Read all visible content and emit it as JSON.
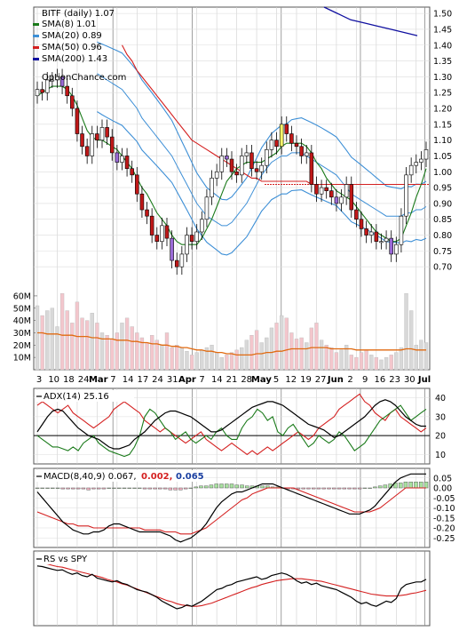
{
  "chart_data": [
    {
      "type": "candlestick",
      "panel": "price",
      "title": "BITF (daily) 1.07",
      "watermark": "OptionChance.com",
      "legend": [
        {
          "label": "SMA(8) 1.01",
          "color": "#1a7a1a"
        },
        {
          "label": "SMA(20) 0.89",
          "color": "#3d8fd6"
        },
        {
          "label": "SMA(50) 0.96",
          "color": "#d42020"
        },
        {
          "label": "SMA(200) 1.43",
          "color": "#1010a0"
        }
      ],
      "legend_placement": "top-left",
      "y_ticks": [
        "1.50",
        "1.45",
        "1.40",
        "1.35",
        "1.30",
        "1.25",
        "1.20",
        "1.15",
        "1.10",
        "1.05",
        "1.00",
        "0.95",
        "0.90",
        "0.85",
        "0.80",
        "0.75",
        "0.70"
      ],
      "ylim": [
        0.65,
        1.52
      ],
      "grid": true,
      "x_tick_labels": [
        "3",
        "10",
        "18",
        "24",
        "Mar",
        "7",
        "14",
        "17",
        "24",
        "31",
        "Apr",
        "7",
        "14",
        "21",
        "28",
        "May",
        "5",
        "12",
        "19",
        "27",
        "Jun",
        "2",
        "9",
        "16",
        "23",
        "30",
        "Jul"
      ],
      "close": [
        1.26,
        1.25,
        1.29,
        1.29,
        1.3,
        1.27,
        1.24,
        1.2,
        1.12,
        1.08,
        1.05,
        1.12,
        1.1,
        1.14,
        1.11,
        1.06,
        1.03,
        1.05,
        1.01,
        0.99,
        0.93,
        0.88,
        0.86,
        0.8,
        0.78,
        0.83,
        0.79,
        0.72,
        0.7,
        0.74,
        0.8,
        0.78,
        0.81,
        0.85,
        0.92,
        0.98,
        1.0,
        1.05,
        1.04,
        1.0,
        0.99,
        1.05,
        1.06,
        1.01,
        1.0,
        1.02,
        1.07,
        1.1,
        1.08,
        1.15,
        1.12,
        1.09,
        1.08,
        1.05,
        1.06,
        0.96,
        0.93,
        0.95,
        0.94,
        0.92,
        0.9,
        0.92,
        0.96,
        0.88,
        0.85,
        0.82,
        0.8,
        0.81,
        0.78,
        0.78,
        0.79,
        0.74,
        0.77,
        0.86,
        0.99,
        1.02,
        1.03,
        1.04,
        1.07
      ],
      "sma8": [
        1.24,
        1.25,
        1.26,
        1.27,
        1.27,
        1.27,
        1.26,
        1.24,
        1.21,
        1.17,
        1.13,
        1.11,
        1.1,
        1.1,
        1.09,
        1.08,
        1.07,
        1.05,
        1.03,
        1.01,
        0.98,
        0.95,
        0.93,
        0.9,
        0.87,
        0.85,
        0.83,
        0.8,
        0.78,
        0.77,
        0.77,
        0.77,
        0.77,
        0.79,
        0.82,
        0.85,
        0.89,
        0.93,
        0.97,
        0.99,
        1.01,
        1.02,
        1.03,
        1.03,
        1.03,
        1.03,
        1.04,
        1.05,
        1.06,
        1.08,
        1.09,
        1.09,
        1.09,
        1.09,
        1.08,
        1.06,
        1.03,
        1.01,
        0.98,
        0.96,
        0.94,
        0.93,
        0.92,
        0.91,
        0.89,
        0.87,
        0.85,
        0.83,
        0.81,
        0.8,
        0.79,
        0.78,
        0.78,
        0.79,
        0.83,
        0.87,
        0.92,
        0.96,
        1.01
      ],
      "sma20_mid": [
        1.31,
        1.3,
        1.29,
        1.28,
        1.27,
        1.26,
        1.24,
        1.22,
        1.2,
        1.17,
        1.15,
        1.13,
        1.11,
        1.09,
        1.07,
        1.05,
        1.02,
        0.99,
        0.96,
        0.93,
        0.9,
        0.88,
        0.86,
        0.85,
        0.84,
        0.83,
        0.83,
        0.84,
        0.86,
        0.88,
        0.9,
        0.93,
        0.96,
        0.99,
        1.01,
        1.03,
        1.04,
        1.05,
        1.05,
        1.06,
        1.06,
        1.06,
        1.05,
        1.04,
        1.03,
        1.02,
        1.01,
        1.0,
        0.99,
        0.97,
        0.95,
        0.93,
        0.92,
        0.91,
        0.9,
        0.89,
        0.88,
        0.87,
        0.86,
        0.86,
        0.86,
        0.86,
        0.87,
        0.87,
        0.88,
        0.88,
        0.89
      ],
      "sma50": [
        null,
        null,
        null,
        null,
        null,
        null,
        null,
        null,
        null,
        null,
        null,
        null,
        null,
        null,
        null,
        null,
        null,
        1.4,
        1.37,
        1.35,
        1.32,
        1.3,
        1.28,
        1.26,
        1.24,
        1.22,
        1.2,
        1.18,
        1.16,
        1.14,
        1.12,
        1.1,
        1.09,
        1.08,
        1.07,
        1.06,
        1.05,
        1.04,
        1.03,
        1.02,
        1.01,
        1.0,
        0.99,
        0.98,
        0.98,
        0.97,
        0.97,
        0.97,
        0.97,
        0.97,
        0.97,
        0.97,
        0.97,
        0.97,
        0.97,
        0.96,
        0.96,
        0.96,
        0.96,
        0.96,
        0.96,
        0.96,
        0.96,
        0.96,
        0.96,
        0.96,
        0.96,
        0.96,
        0.96,
        0.96,
        0.96,
        0.96,
        0.96,
        0.96,
        0.96,
        0.96,
        0.96,
        0.96,
        0.96
      ],
      "sma200": [
        1.52,
        1.5,
        1.48,
        1.47,
        1.46,
        1.45,
        1.44,
        1.43
      ],
      "volume_ticks": [
        "60M",
        "50M",
        "40M",
        "30M",
        "20M",
        "10M"
      ],
      "volume_max": 65,
      "volume_millions": [
        52,
        44,
        48,
        50,
        35,
        62,
        48,
        38,
        55,
        42,
        40,
        46,
        38,
        30,
        28,
        25,
        30,
        38,
        42,
        35,
        30,
        26,
        22,
        28,
        24,
        20,
        30,
        18,
        20,
        18,
        15,
        12,
        14,
        16,
        18,
        20,
        14,
        10,
        12,
        14,
        16,
        18,
        24,
        28,
        32,
        22,
        26,
        34,
        38,
        44,
        42,
        30,
        25,
        26,
        22,
        34,
        38,
        24,
        20,
        18,
        14,
        16,
        20,
        12,
        10,
        14,
        16,
        12,
        10,
        8,
        10,
        12,
        14,
        18,
        62,
        48,
        20,
        24,
        22
      ],
      "volume_ma": [
        30,
        30,
        29,
        29,
        29,
        28,
        28,
        28,
        27,
        27,
        27,
        26,
        26,
        25,
        25,
        25,
        24,
        24,
        24,
        23,
        23,
        22,
        22,
        21,
        21,
        20,
        20,
        19,
        19,
        18,
        18,
        17,
        16,
        16,
        15,
        15,
        14,
        14,
        13,
        13,
        12,
        12,
        12,
        12,
        13,
        13,
        14,
        14,
        15,
        15,
        16,
        17,
        17,
        17,
        17,
        18,
        18,
        18,
        18,
        17,
        17,
        17,
        17,
        17,
        16,
        16,
        16,
        16,
        16,
        16,
        16,
        16,
        16,
        16,
        17,
        17,
        16,
        16,
        16
      ]
    },
    {
      "type": "line",
      "panel": "adx",
      "label": "ADX(14) 25.16",
      "y_ticks": [
        "40",
        "30",
        "20",
        "10"
      ],
      "ylim": [
        5,
        45
      ],
      "reference_line": 20,
      "adx": [
        22,
        26,
        30,
        33,
        34,
        33,
        30,
        27,
        24,
        22,
        20,
        19,
        18,
        16,
        14,
        13,
        13,
        14,
        15,
        18,
        20,
        22,
        25,
        28,
        30,
        32,
        33,
        33,
        32,
        31,
        30,
        28,
        26,
        24,
        22,
        22,
        23,
        25,
        27,
        29,
        31,
        33,
        35,
        36,
        37,
        38,
        38,
        37,
        36,
        34,
        32,
        30,
        28,
        26,
        25,
        24,
        23,
        21,
        19,
        20,
        22,
        24,
        26,
        28,
        30,
        33,
        36,
        38,
        39,
        38,
        36,
        33,
        30,
        28,
        26,
        25,
        25
      ],
      "plus_di": [
        20,
        18,
        16,
        14,
        14,
        13,
        12,
        14,
        12,
        16,
        18,
        20,
        16,
        14,
        12,
        11,
        10,
        9,
        10,
        14,
        20,
        30,
        34,
        32,
        28,
        24,
        22,
        18,
        20,
        22,
        18,
        16,
        18,
        20,
        18,
        22,
        24,
        20,
        18,
        18,
        24,
        28,
        30,
        34,
        32,
        28,
        30,
        22,
        20,
        24,
        26,
        22,
        18,
        14,
        16,
        20,
        18,
        16,
        18,
        22,
        20,
        16,
        12,
        14,
        16,
        20,
        24,
        28,
        30,
        32,
        34,
        36,
        32,
        28,
        30,
        32,
        34
      ],
      "minus_di": [
        36,
        38,
        36,
        34,
        32,
        34,
        36,
        32,
        30,
        28,
        26,
        24,
        26,
        28,
        30,
        34,
        36,
        38,
        36,
        34,
        32,
        28,
        26,
        24,
        22,
        24,
        22,
        20,
        18,
        16,
        18,
        20,
        22,
        18,
        16,
        14,
        12,
        14,
        16,
        14,
        12,
        10,
        12,
        10,
        12,
        14,
        12,
        14,
        16,
        18,
        20,
        22,
        20,
        18,
        20,
        24,
        26,
        28,
        30,
        34,
        36,
        38,
        40,
        42,
        38,
        36,
        32,
        30,
        28,
        32,
        34,
        30,
        28,
        26,
        24,
        22,
        24
      ]
    },
    {
      "type": "bar",
      "panel": "macd",
      "label": "MACD(8,40,9) 0.067,",
      "signal_label": "0.002,",
      "hist_label": "0.065",
      "y_ticks": [
        "0.05",
        "0.00",
        "-0.05",
        "-0.10",
        "-0.15",
        "-0.20",
        "-0.25"
      ],
      "ylim": [
        -0.28,
        0.08
      ],
      "macd": [
        -0.02,
        -0.05,
        -0.08,
        -0.11,
        -0.14,
        -0.17,
        -0.19,
        -0.21,
        -0.22,
        -0.23,
        -0.23,
        -0.22,
        -0.22,
        -0.21,
        -0.19,
        -0.18,
        -0.18,
        -0.19,
        -0.2,
        -0.21,
        -0.22,
        -0.22,
        -0.22,
        -0.22,
        -0.22,
        -0.23,
        -0.24,
        -0.26,
        -0.27,
        -0.26,
        -0.25,
        -0.23,
        -0.21,
        -0.18,
        -0.14,
        -0.1,
        -0.07,
        -0.05,
        -0.03,
        -0.02,
        -0.02,
        -0.01,
        0.0,
        0.01,
        0.02,
        0.02,
        0.02,
        0.01,
        0.0,
        -0.01,
        -0.02,
        -0.03,
        -0.04,
        -0.05,
        -0.06,
        -0.07,
        -0.08,
        -0.09,
        -0.1,
        -0.11,
        -0.12,
        -0.13,
        -0.13,
        -0.13,
        -0.12,
        -0.11,
        -0.09,
        -0.06,
        -0.03,
        0.0,
        0.03,
        0.05,
        0.06,
        0.07,
        0.07,
        0.07,
        0.07
      ],
      "signal": [
        -0.12,
        -0.13,
        -0.14,
        -0.15,
        -0.16,
        -0.17,
        -0.18,
        -0.18,
        -0.19,
        -0.19,
        -0.19,
        -0.2,
        -0.2,
        -0.2,
        -0.2,
        -0.2,
        -0.2,
        -0.2,
        -0.2,
        -0.2,
        -0.2,
        -0.21,
        -0.21,
        -0.21,
        -0.21,
        -0.22,
        -0.22,
        -0.22,
        -0.23,
        -0.23,
        -0.23,
        -0.22,
        -0.21,
        -0.2,
        -0.18,
        -0.16,
        -0.14,
        -0.12,
        -0.1,
        -0.08,
        -0.06,
        -0.05,
        -0.03,
        -0.02,
        -0.01,
        0.0,
        0.0,
        0.0,
        0.0,
        0.0,
        0.0,
        -0.01,
        -0.02,
        -0.03,
        -0.04,
        -0.05,
        -0.06,
        -0.07,
        -0.08,
        -0.09,
        -0.1,
        -0.11,
        -0.12,
        -0.12,
        -0.12,
        -0.12,
        -0.11,
        -0.1,
        -0.08,
        -0.06,
        -0.04,
        -0.02,
        0.0,
        0.0,
        0.0,
        0.0,
        0.0
      ],
      "hist": [
        0.0,
        0.0,
        0.0,
        0.0,
        0.0,
        -0.01,
        -0.01,
        -0.01,
        -0.01,
        -0.01,
        -0.02,
        -0.01,
        -0.01,
        -0.01,
        0.0,
        0.0,
        0.0,
        0.0,
        0.0,
        0.0,
        0.0,
        -0.01,
        -0.01,
        -0.01,
        -0.01,
        -0.01,
        -0.02,
        -0.02,
        -0.02,
        -0.01,
        0.0,
        0.01,
        0.02,
        0.02,
        0.03,
        0.04,
        0.04,
        0.04,
        0.04,
        0.03,
        0.03,
        0.02,
        0.02,
        0.02,
        0.02,
        0.02,
        0.01,
        0.01,
        0.0,
        -0.01,
        -0.01,
        -0.01,
        -0.01,
        -0.01,
        -0.01,
        -0.01,
        -0.01,
        -0.01,
        -0.01,
        -0.01,
        -0.01,
        -0.01,
        -0.01,
        -0.01,
        0.0,
        0.0,
        0.01,
        0.02,
        0.03,
        0.04,
        0.05,
        0.05,
        0.06,
        0.06,
        0.06,
        0.06,
        0.06
      ]
    },
    {
      "type": "line",
      "panel": "rs",
      "label": "RS vs SPY",
      "ylim": [
        0,
        100
      ],
      "rs": [
        85,
        84,
        82,
        80,
        78,
        79,
        75,
        72,
        74,
        70,
        68,
        72,
        66,
        64,
        62,
        60,
        62,
        58,
        56,
        52,
        48,
        46,
        44,
        40,
        36,
        30,
        26,
        22,
        18,
        20,
        24,
        22,
        26,
        30,
        36,
        42,
        48,
        50,
        54,
        56,
        60,
        62,
        64,
        66,
        68,
        64,
        66,
        70,
        72,
        74,
        72,
        68,
        62,
        58,
        60,
        56,
        58,
        54,
        52,
        50,
        48,
        44,
        40,
        36,
        30,
        26,
        28,
        24,
        22,
        26,
        30,
        28,
        34,
        50,
        56,
        58,
        60,
        60,
        64
      ],
      "rs_ma": [
        90,
        89,
        88,
        86,
        84,
        83,
        81,
        79,
        77,
        75,
        73,
        71,
        69,
        67,
        64,
        62,
        60,
        57,
        55,
        52,
        49,
        46,
        43,
        40,
        37,
        34,
        31,
        29,
        26,
        24,
        23,
        22,
        22,
        23,
        25,
        27,
        30,
        33,
        36,
        39,
        42,
        45,
        48,
        51,
        53,
        56,
        58,
        60,
        62,
        63,
        64,
        65,
        65,
        65,
        64,
        63,
        62,
        61,
        59,
        57,
        55,
        53,
        51,
        49,
        47,
        45,
        43,
        41,
        40,
        39,
        38,
        38,
        38,
        39,
        40,
        42,
        43,
        45,
        47
      ]
    }
  ]
}
